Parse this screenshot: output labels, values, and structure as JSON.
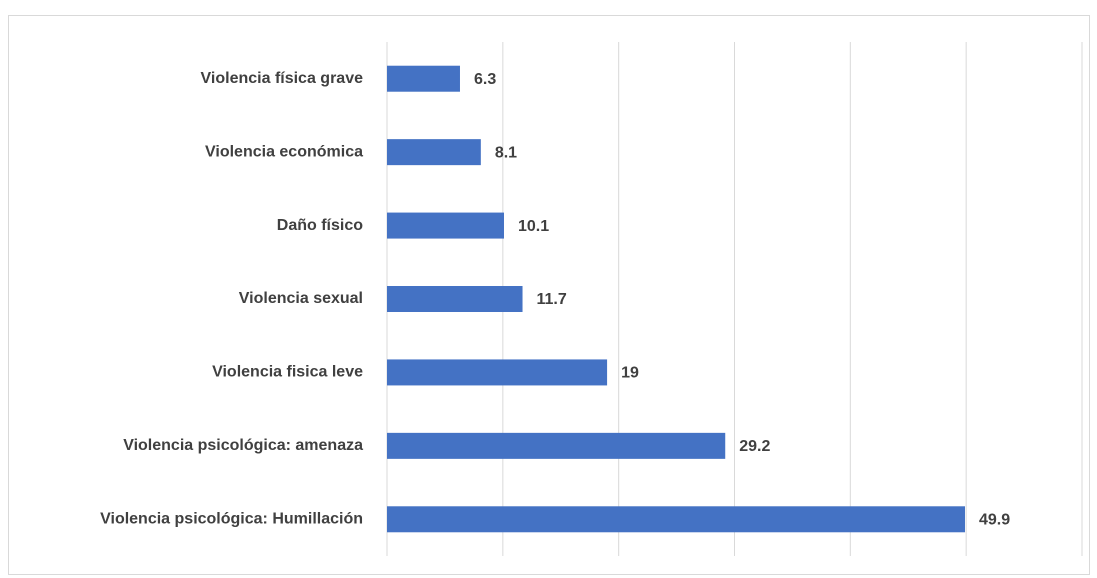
{
  "chart_data": {
    "type": "barh",
    "categories": [
      "Violencia física grave",
      "Violencia económica",
      "Daño físico",
      "Violencia sexual",
      "Violencia fisica leve",
      "Violencia psicológica: amenaza",
      "Violencia psicológica: Humillación"
    ],
    "values": [
      6.3,
      8.1,
      10.1,
      11.7,
      19,
      29.2,
      49.9
    ],
    "color": "#4472c4",
    "xlim": [
      0,
      60
    ],
    "xticks": [
      0,
      10,
      20,
      30,
      40,
      50,
      60
    ],
    "grid": true
  }
}
